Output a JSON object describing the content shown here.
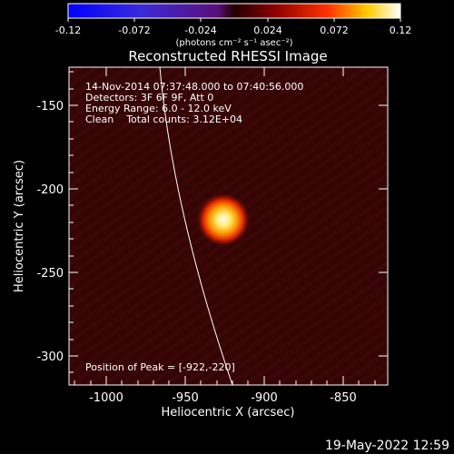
{
  "colorbar": {
    "ticks": [
      "-0.12",
      "-0.072",
      "-0.024",
      "0.024",
      "0.072",
      "0.12"
    ],
    "units": "(photons cm⁻² s⁻¹ asec⁻²)"
  },
  "title": "Reconstructed RHESSI Image",
  "annotations": {
    "time": "14-Nov-2014 07:37:48.000 to 07:40:56.000",
    "detectors": "Detectors: 3F 6F 9F, Att 0",
    "energy": "Energy Range: 6.0 - 12.0 keV",
    "clean": "Clean    Total counts: 3.12E+04",
    "peak": "Position of Peak = [-922,-220]"
  },
  "axes": {
    "xlabel": "Heliocentric X (arcsec)",
    "ylabel": "Heliocentric Y (arcsec)",
    "xticks": [
      "-1000",
      "-950",
      "-900",
      "-850"
    ],
    "yticks": [
      "-150",
      "-200",
      "-250",
      "-300"
    ]
  },
  "footer": {
    "date": "19-May-2022 12:59"
  },
  "colors": {
    "background": "#000000",
    "map_base": "#3a0707",
    "source_core": "#fffbe0",
    "limb": "#ffffff"
  }
}
